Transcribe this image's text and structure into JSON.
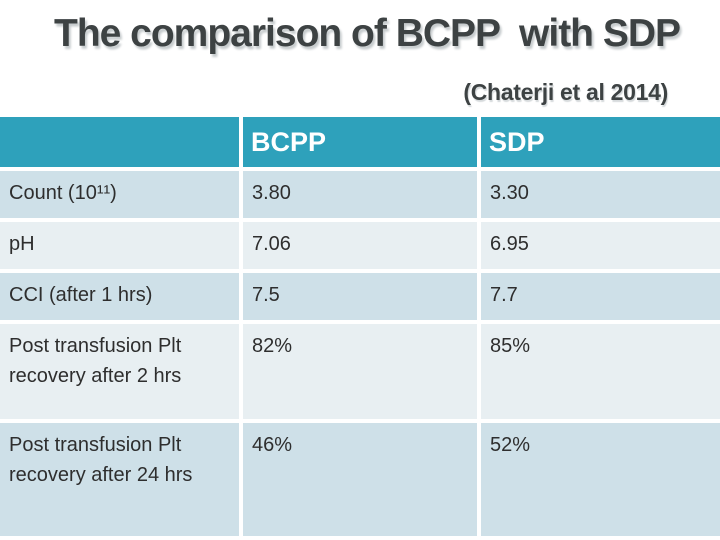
{
  "slide": {
    "title": "The comparison of BCPP  with SDP",
    "citation": "(Chaterji et al 2014)"
  },
  "colors": {
    "header_teal": "#2ea1bb",
    "row_medium": "#cee0e8",
    "row_light": "#e8eff2",
    "title_gray": "#3d4243",
    "header_text": "#ffffff",
    "cell_text": "#2e2e2e"
  },
  "chart_data": {
    "type": "table",
    "title": "The comparison of BCPP with SDP",
    "annotation": "(Chaterji et al 2014)",
    "columns": [
      "",
      "BCPP",
      "SDP"
    ],
    "rows": [
      {
        "label": "Count (10¹¹)",
        "bcpp": "3.80",
        "sdp": "3.30"
      },
      {
        "label": "pH",
        "bcpp": "7.06",
        "sdp": "6.95"
      },
      {
        "label": "CCI (after 1 hrs)",
        "bcpp": "7.5",
        "sdp": "7.7"
      },
      {
        "label": "Post transfusion Plt recovery after 2 hrs",
        "bcpp": "82%",
        "sdp": "85%"
      },
      {
        "label": "Post transfusion Plt recovery after 24 hrs",
        "bcpp": "46%",
        "sdp": "52%"
      }
    ],
    "layout": {
      "header_background": "#2ea1bb",
      "row_striping": "alternating",
      "grid": "white 4px cell spacing",
      "last_row_clipped_at_bottom": true
    }
  }
}
